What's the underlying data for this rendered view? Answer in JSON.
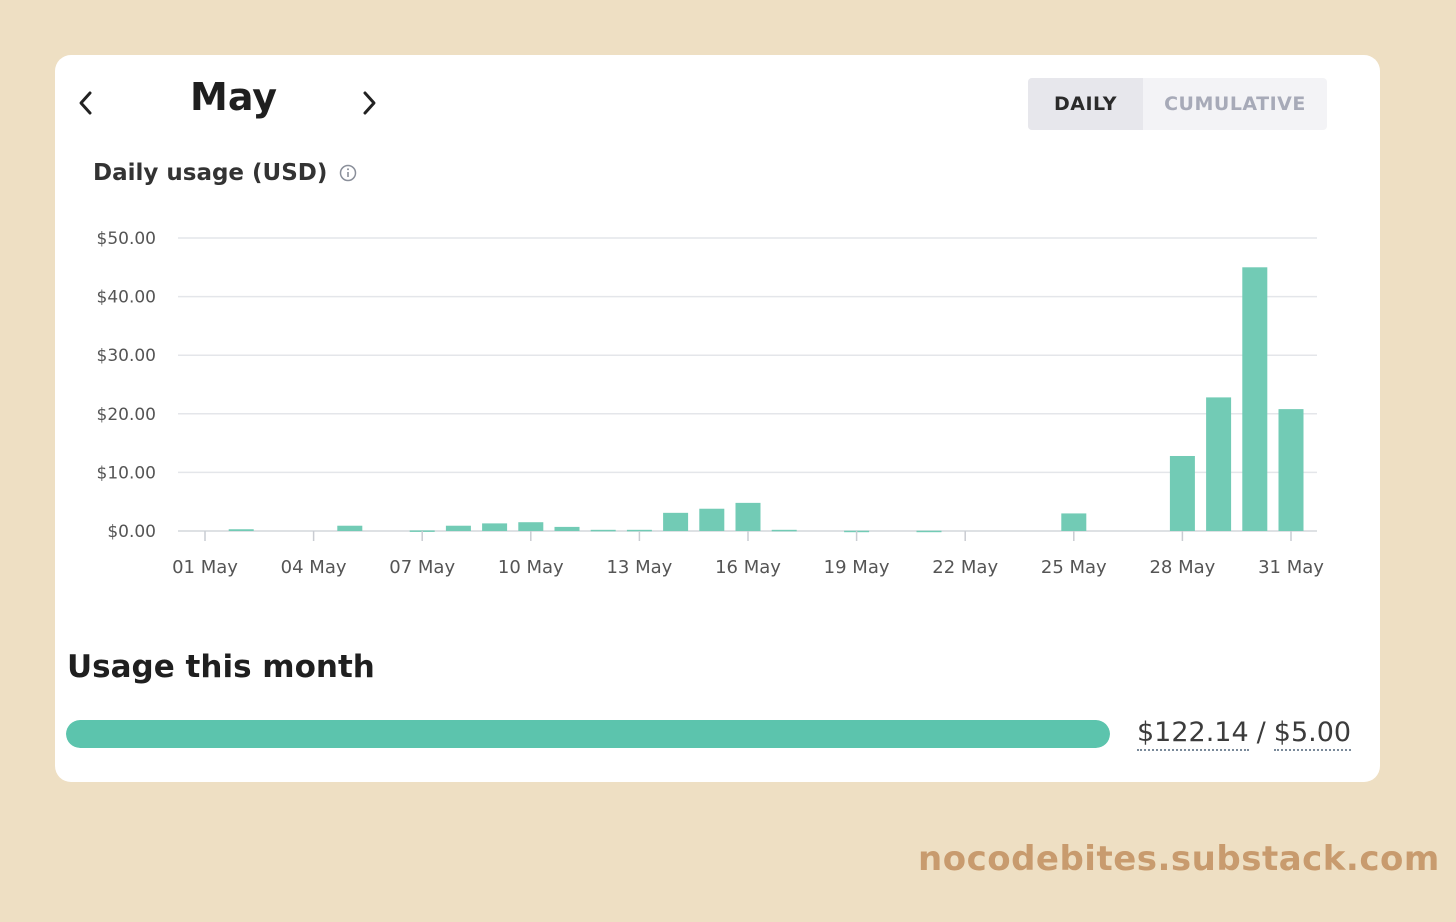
{
  "header": {
    "month": "May",
    "prev_icon": "chevron-left-icon",
    "next_icon": "chevron-right-icon"
  },
  "toggle": {
    "daily_label": "DAILY",
    "cumulative_label": "CUMULATIVE",
    "selected": "DAILY"
  },
  "chart_heading": {
    "label": "Daily usage (USD)",
    "icon": "info-icon"
  },
  "chart_data": {
    "type": "bar",
    "ylim": [
      0,
      50
    ],
    "y_ticks": [
      {
        "value": 50,
        "label": "$50.00"
      },
      {
        "value": 40,
        "label": "$40.00"
      },
      {
        "value": 30,
        "label": "$30.00"
      },
      {
        "value": 20,
        "label": "$20.00"
      },
      {
        "value": 10,
        "label": "$10.00"
      },
      {
        "value": 0,
        "label": "$0.00"
      }
    ],
    "x_tick_labels": [
      {
        "day": 1,
        "label": "01 May"
      },
      {
        "day": 4,
        "label": "04 May"
      },
      {
        "day": 7,
        "label": "07 May"
      },
      {
        "day": 10,
        "label": "10 May"
      },
      {
        "day": 13,
        "label": "13 May"
      },
      {
        "day": 16,
        "label": "16 May"
      },
      {
        "day": 19,
        "label": "19 May"
      },
      {
        "day": 22,
        "label": "22 May"
      },
      {
        "day": 25,
        "label": "25 May"
      },
      {
        "day": 28,
        "label": "28 May"
      },
      {
        "day": 31,
        "label": "31 May"
      }
    ],
    "days": [
      1,
      2,
      3,
      4,
      5,
      6,
      7,
      8,
      9,
      10,
      11,
      12,
      13,
      14,
      15,
      16,
      17,
      18,
      19,
      20,
      21,
      22,
      23,
      24,
      25,
      26,
      27,
      28,
      29,
      30,
      31
    ],
    "values": [
      0,
      0.3,
      0,
      0,
      0.9,
      0,
      0.1,
      0.9,
      1.3,
      1.5,
      0.7,
      0.2,
      0.2,
      3.1,
      3.8,
      4.8,
      0.2,
      0,
      0.05,
      0,
      0.05,
      0,
      0,
      0,
      3.0,
      0,
      0,
      12.8,
      22.8,
      45.0,
      20.8
    ],
    "grid": true,
    "bar_color": "#72cbb5"
  },
  "usage": {
    "title": "Usage this month",
    "used": "$122.14",
    "separator": "/",
    "limit": "$5.00",
    "progress_fraction": 1.0,
    "bar_color": "#5cc4ad"
  },
  "watermark": "nocodebites.substack.com"
}
